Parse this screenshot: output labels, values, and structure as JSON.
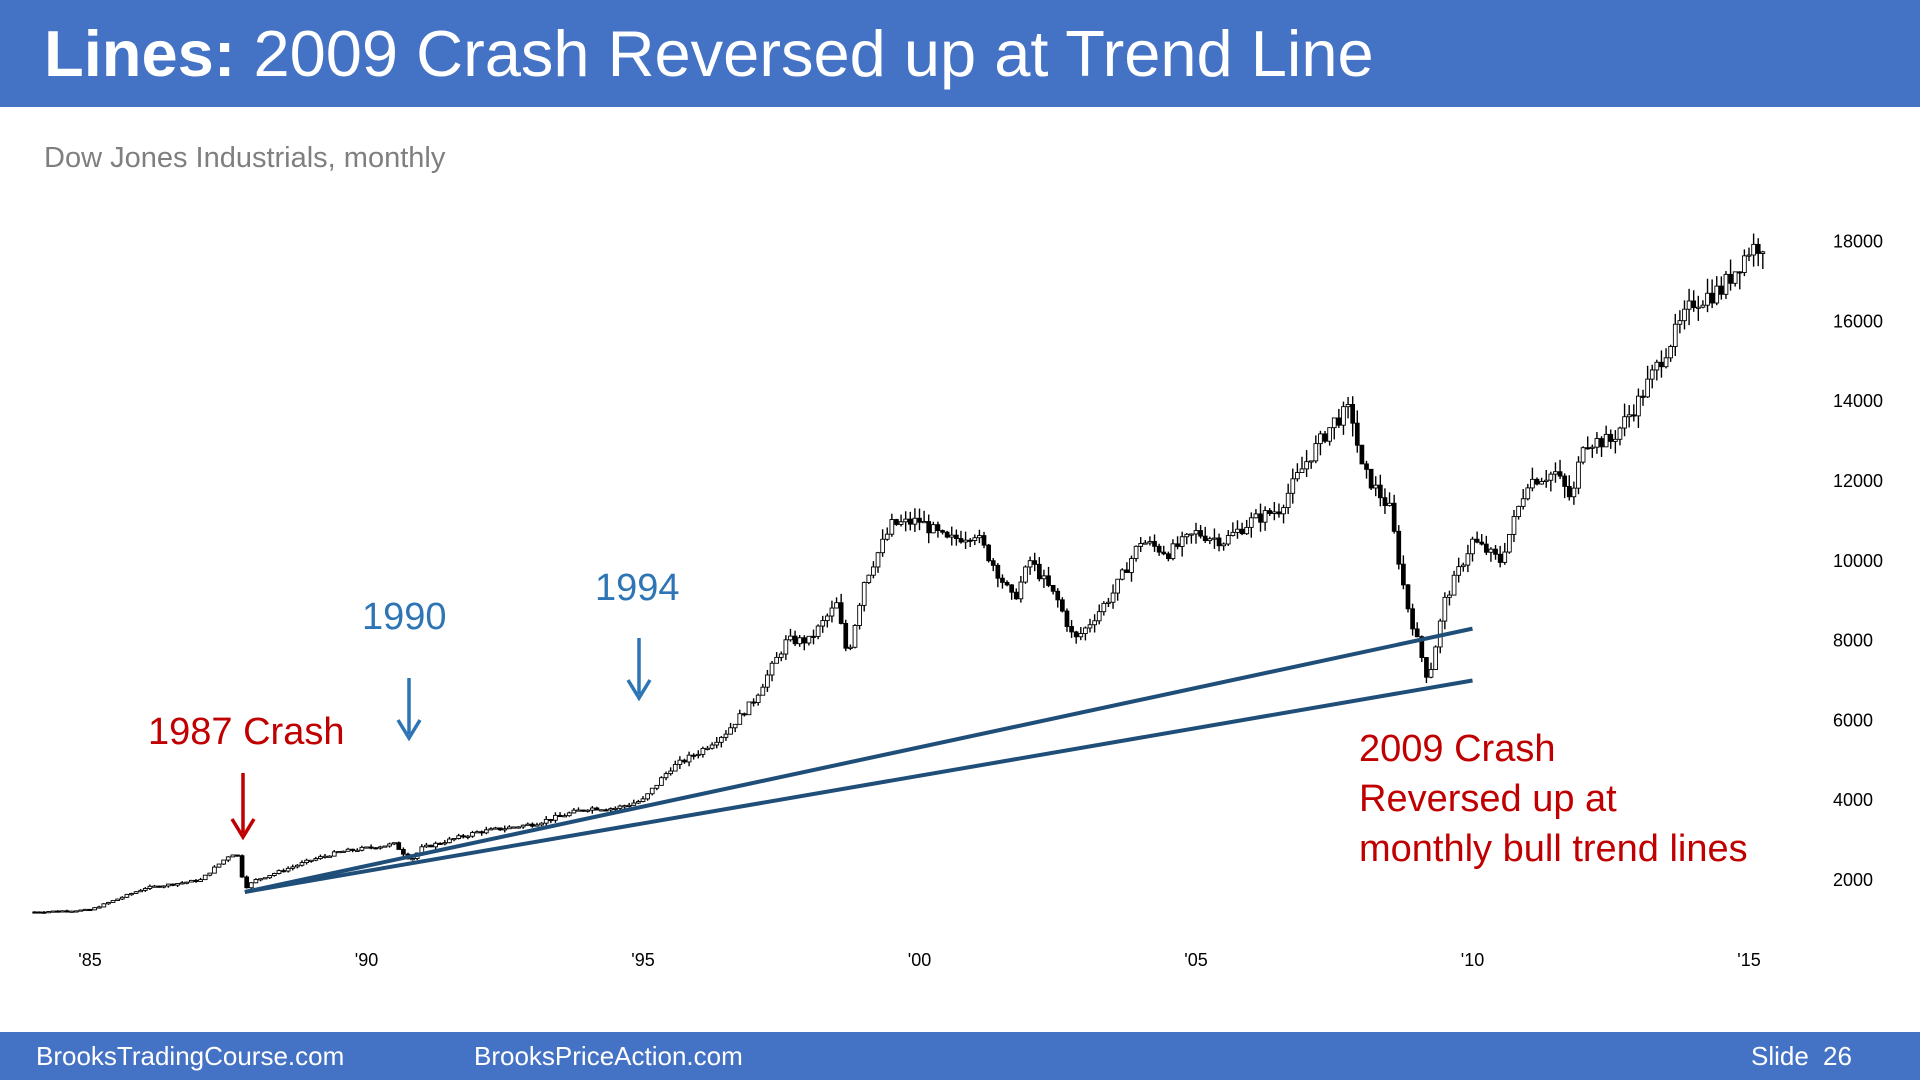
{
  "slide": {
    "title_bold": "Lines:",
    "title_rest": "2009 Crash Reversed up at Trend Line",
    "subtitle": "Dow Jones Industrials, monthly",
    "footer_left": "BrooksTradingCourse.com",
    "footer_mid": "BrooksPriceAction.com",
    "slide_label": "Slide",
    "slide_number": "26"
  },
  "colors": {
    "header": "#4472c4",
    "candles": "#000000",
    "trendlines": "#1f4e79",
    "annotation_red": "#c00000",
    "annotation_blue": "#2e75b6"
  },
  "annotations": [
    {
      "id": "annot-1987",
      "text": "1987 Crash",
      "color": "#c00000"
    },
    {
      "id": "annot-1990",
      "text": "1990",
      "color": "#2e75b6"
    },
    {
      "id": "annot-1994",
      "text": "1994",
      "color": "#2e75b6"
    },
    {
      "id": "annot-2009",
      "lines": [
        "2009 Crash",
        "Reversed up at",
        "monthly bull trend lines"
      ],
      "color": "#c00000"
    }
  ],
  "chart_data": {
    "type": "candlestick",
    "title": "Dow Jones Industrials, monthly",
    "xlabel": "",
    "ylabel": "",
    "x_ticks": [
      1985,
      1990,
      1995,
      2000,
      2005,
      2010,
      2015
    ],
    "x_tick_labels": [
      "'85",
      "'90",
      "'95",
      "'00",
      "'05",
      "'10",
      "'15"
    ],
    "y_ticks": [
      2000,
      4000,
      6000,
      8000,
      10000,
      12000,
      14000,
      16000,
      18000
    ],
    "y_tick_labels": [
      "2000",
      "4000",
      "6000",
      "8000",
      "10000",
      "12000",
      "14000",
      "16000",
      "18000"
    ],
    "y_axis_side": "right",
    "grid": false,
    "series": [
      {
        "name": "",
        "x": [
          1984.0,
          1985.0,
          1986.0,
          1987.0,
          1987.5,
          1987.65,
          1987.8,
          1988.0,
          1989.0,
          1989.5,
          1990.0,
          1990.5,
          1990.8,
          1991.0,
          1992.0,
          1993.0,
          1994.0,
          1994.5,
          1995.0,
          1995.5,
          1996.0,
          1996.5,
          1997.0,
          1997.6,
          1998.0,
          1998.5,
          1998.7,
          1999.0,
          1999.5,
          2000.0,
          2000.5,
          2001.0,
          2001.3,
          2001.7,
          2002.0,
          2002.5,
          2002.8,
          2003.0,
          2003.5,
          2004.0,
          2004.5,
          2005.0,
          2005.5,
          2006.0,
          2006.5,
          2007.0,
          2007.5,
          2007.8,
          2008.0,
          2008.5,
          2008.8,
          2009.0,
          2009.2,
          2009.5,
          2010.0,
          2010.5,
          2011.0,
          2011.5,
          2011.8,
          2012.0,
          2012.5,
          2013.0,
          2013.5,
          2014.0,
          2014.5,
          2015.0,
          2015.3
        ],
        "y": [
          1200,
          1250,
          1800,
          2000,
          2600,
          2700,
          1800,
          2000,
          2500,
          2700,
          2800,
          2900,
          2500,
          2800,
          3200,
          3400,
          3800,
          3800,
          4000,
          4800,
          5200,
          5700,
          6500,
          8000,
          8000,
          8900,
          7600,
          9500,
          10900,
          11000,
          10500,
          10700,
          10000,
          9000,
          10000,
          9000,
          8000,
          8300,
          9200,
          10500,
          10200,
          10700,
          10500,
          11000,
          11300,
          12500,
          13500,
          13800,
          12300,
          11300,
          9000,
          8000,
          7000,
          9000,
          10500,
          10000,
          12000,
          12200,
          11500,
          13000,
          13000,
          14000,
          15300,
          16500,
          16800,
          17800,
          18000
        ]
      }
    ],
    "trendlines": [
      {
        "from": [
          1987.8,
          1700
        ],
        "to": [
          2010.0,
          8300
        ]
      },
      {
        "from": [
          1987.8,
          1700
        ],
        "to": [
          2010.0,
          7000
        ]
      }
    ]
  }
}
